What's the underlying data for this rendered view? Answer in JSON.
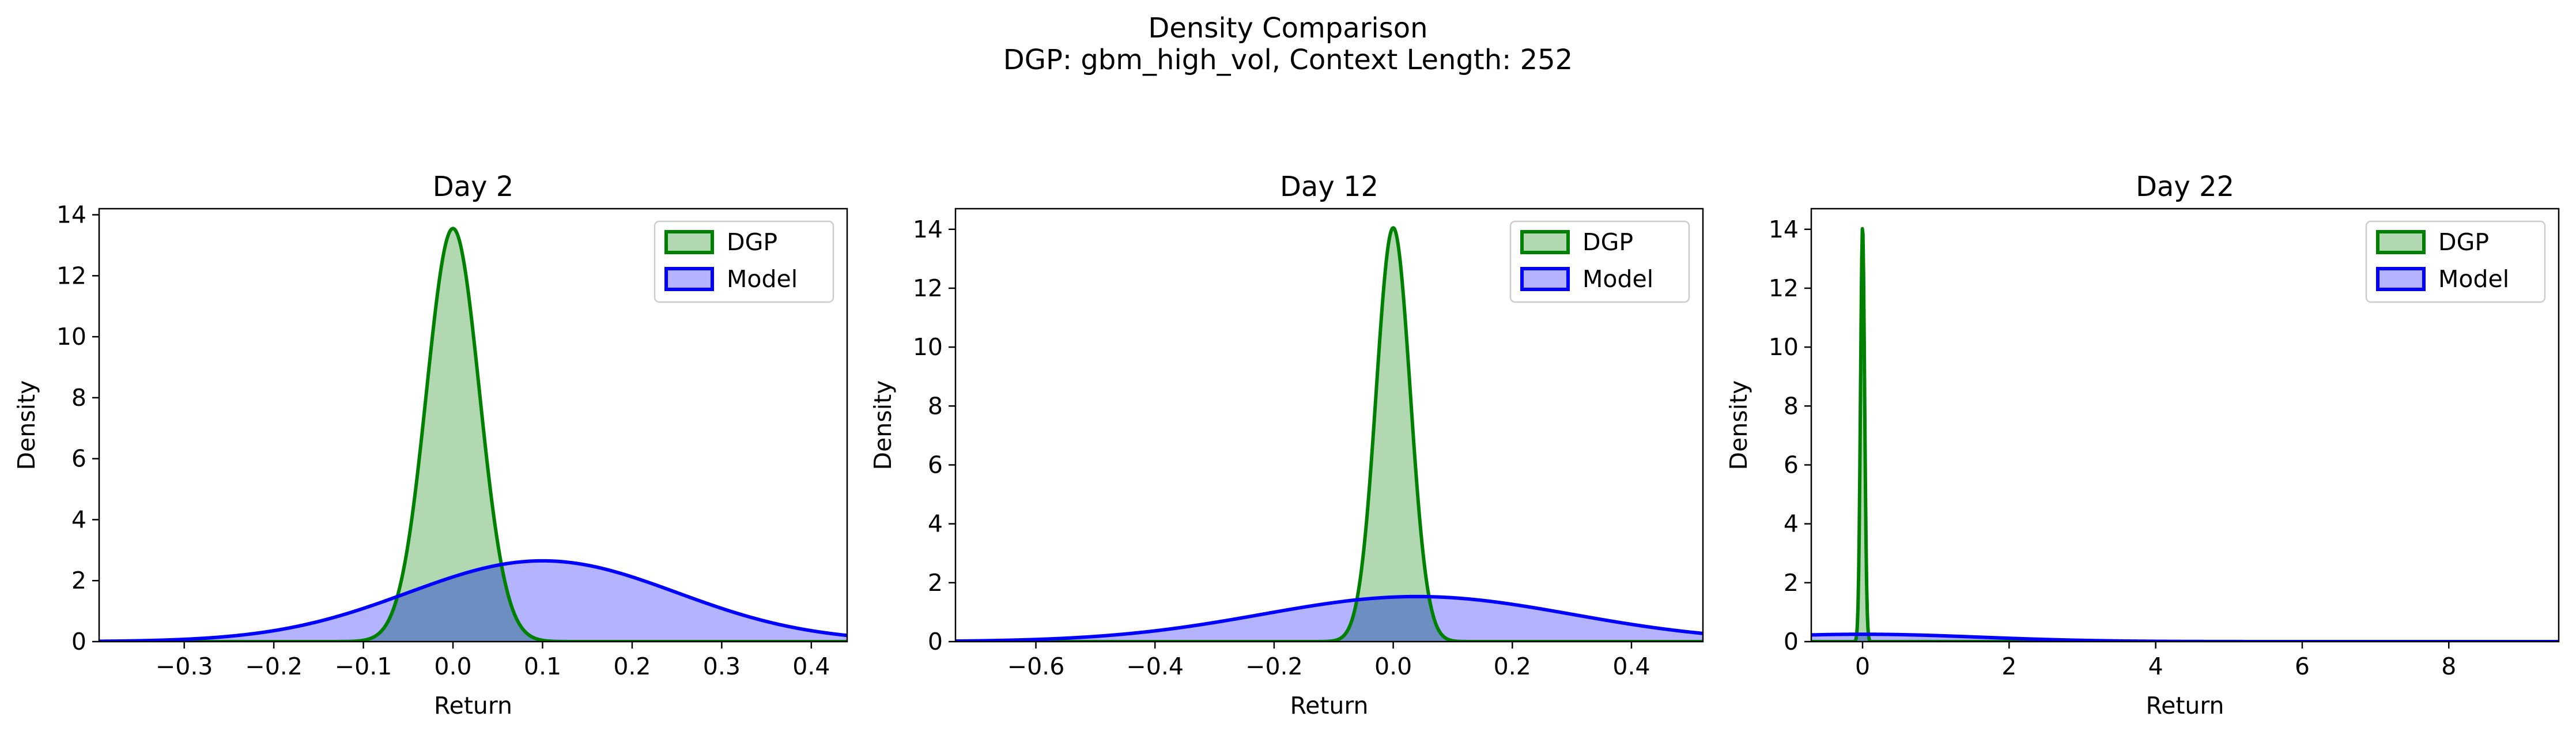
{
  "figure": {
    "title": "Density Comparison",
    "subtitle": "DGP: gbm_high_vol, Context Length: 252"
  },
  "colors": {
    "dgp_line": "#008000",
    "dgp_fill": "#b2d8b2",
    "model_line": "#0000ff",
    "model_fill": "#b3b3ff",
    "overlap_fill": "#6d8ec0"
  },
  "chart_data": [
    {
      "type": "area",
      "title": "Day 2",
      "xlabel": "Return",
      "ylabel": "Density",
      "xlim": [
        -0.395,
        0.44
      ],
      "ylim": [
        0,
        14.2
      ],
      "xticks": [
        -0.3,
        -0.2,
        -0.1,
        0.0,
        0.1,
        0.2,
        0.3,
        0.4
      ],
      "xtick_labels": [
        "−0.3",
        "−0.2",
        "−0.1",
        "0.0",
        "0.1",
        "0.2",
        "0.3",
        "0.4"
      ],
      "yticks": [
        0,
        2,
        4,
        6,
        8,
        10,
        12,
        14
      ],
      "ytick_labels": [
        "0",
        "2",
        "4",
        "6",
        "8",
        "10",
        "12",
        "14"
      ],
      "legend": "top-right",
      "grid": false,
      "series": [
        {
          "name": "DGP",
          "distribution": "normal",
          "mean": 0.0,
          "std": 0.0295,
          "peak": 13.55
        },
        {
          "name": "Model",
          "distribution": "normal",
          "mean": 0.1,
          "std": 0.15,
          "peak": 2.65
        }
      ]
    },
    {
      "type": "area",
      "title": "Day 12",
      "xlabel": "Return",
      "ylabel": "Density",
      "xlim": [
        -0.735,
        0.52
      ],
      "ylim": [
        0,
        14.7
      ],
      "xticks": [
        -0.6,
        -0.4,
        -0.2,
        0.0,
        0.2,
        0.4
      ],
      "xtick_labels": [
        "−0.6",
        "−0.4",
        "−0.2",
        "0.0",
        "0.2",
        "0.4"
      ],
      "yticks": [
        0,
        2,
        4,
        6,
        8,
        10,
        12,
        14
      ],
      "ytick_labels": [
        "0",
        "2",
        "4",
        "6",
        "8",
        "10",
        "12",
        "14"
      ],
      "legend": "top-right",
      "grid": false,
      "series": [
        {
          "name": "DGP",
          "distribution": "normal",
          "mean": 0.0,
          "std": 0.0285,
          "peak": 14.05
        },
        {
          "name": "Model",
          "distribution": "normal",
          "mean": 0.04,
          "std": 0.26,
          "peak": 1.53
        }
      ]
    },
    {
      "type": "area",
      "title": "Day 22",
      "xlabel": "Return",
      "ylabel": "Density",
      "xlim": [
        -0.7,
        9.5
      ],
      "ylim": [
        0,
        14.7
      ],
      "xticks": [
        0,
        2,
        4,
        6,
        8
      ],
      "xtick_labels": [
        "0",
        "2",
        "4",
        "6",
        "8"
      ],
      "yticks": [
        0,
        2,
        4,
        6,
        8,
        10,
        12,
        14
      ],
      "ytick_labels": [
        "0",
        "2",
        "4",
        "6",
        "8",
        "10",
        "12",
        "14"
      ],
      "legend": "top-right",
      "grid": false,
      "series": [
        {
          "name": "DGP",
          "distribution": "normal",
          "mean": 0.0,
          "std": 0.028,
          "peak": 14.1
        },
        {
          "name": "Model",
          "distribution": "normal",
          "mean": 0.0,
          "std": 1.6,
          "peak": 0.25
        }
      ]
    }
  ]
}
